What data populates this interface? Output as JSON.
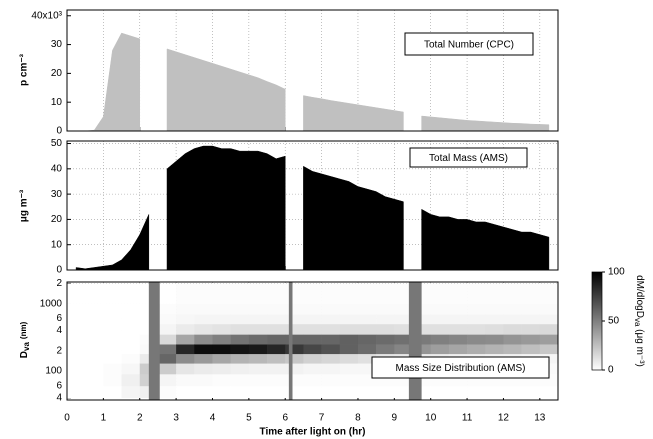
{
  "chart_data": [
    {
      "type": "area",
      "ylabel": "p cm⁻³",
      "annotation": "Total Number (CPC)",
      "ylim": [
        0,
        42
      ],
      "yticks": [
        0,
        10,
        20,
        30,
        {
          "value": 40,
          "label": "40x10³"
        }
      ],
      "grid": true,
      "x": [
        0,
        0.25,
        0.5,
        0.75,
        1,
        1.25,
        1.5,
        1.75,
        2,
        2.25,
        2.5,
        2.75,
        3,
        3.25,
        3.5,
        3.75,
        4,
        4.25,
        4.5,
        4.75,
        5,
        5.25,
        5.5,
        5.75,
        6,
        6.25,
        6.5,
        6.75,
        7,
        7.25,
        7.5,
        7.75,
        8,
        8.25,
        8.5,
        8.75,
        9,
        9.25,
        9.5,
        9.75,
        10,
        10.25,
        10.5,
        10.75,
        11,
        11.25,
        11.5,
        11.75,
        12,
        12.25,
        12.5,
        12.75,
        13,
        13.25
      ],
      "series": [
        {
          "color": "#c0c0c0",
          "values": [
            0,
            0,
            0,
            0.3,
            5,
            28,
            34,
            33,
            32,
            null,
            null,
            28.5,
            27.5,
            26.5,
            25.5,
            24.5,
            23.5,
            22.5,
            21.5,
            20.5,
            19.5,
            18.5,
            17.2,
            16,
            14.5,
            null,
            12.3,
            11.7,
            11.2,
            10.6,
            10.1,
            9.6,
            9.1,
            8.6,
            8.1,
            7.6,
            7.1,
            6.6,
            null,
            5.2,
            4.9,
            4.6,
            4.3,
            4.0,
            3.7,
            3.5,
            3.3,
            3.1,
            2.9,
            2.7,
            2.6,
            2.4,
            2.3,
            2.2
          ]
        }
      ]
    },
    {
      "type": "area",
      "ylabel": "μg m⁻³",
      "annotation": "Total Mass (AMS)",
      "ylim": [
        0,
        51
      ],
      "yticks": [
        0,
        10,
        20,
        30,
        40,
        50
      ],
      "grid": true,
      "x": [
        0.25,
        0.5,
        0.75,
        1,
        1.25,
        1.5,
        1.75,
        2,
        2.25,
        2.5,
        2.75,
        3,
        3.25,
        3.5,
        3.75,
        4,
        4.25,
        4.5,
        4.75,
        5,
        5.25,
        5.5,
        5.75,
        6,
        6.25,
        6.5,
        6.75,
        7,
        7.25,
        7.5,
        7.75,
        8,
        8.25,
        8.5,
        8.75,
        9,
        9.25,
        9.5,
        9.75,
        10,
        10.25,
        10.5,
        10.75,
        11,
        11.25,
        11.5,
        11.75,
        12,
        12.25,
        12.5,
        12.75,
        13,
        13.25
      ],
      "series": [
        {
          "color": "#000000",
          "values": [
            1,
            0.5,
            1,
            1.5,
            2,
            4,
            8,
            14,
            22,
            null,
            40,
            43,
            46,
            48,
            49,
            49,
            48,
            48,
            47,
            47,
            47,
            46,
            44,
            45,
            null,
            41,
            39,
            38,
            37,
            36,
            35,
            33,
            32,
            31,
            29,
            28,
            27,
            null,
            24,
            22,
            21,
            21,
            20,
            20,
            19,
            19,
            18,
            17,
            16,
            15,
            15,
            14,
            13
          ]
        }
      ]
    },
    {
      "type": "heatmap",
      "ylabel": {
        "symbol": "D",
        "subscript": "va",
        "unit": "(nm)"
      },
      "annotation": "Mass Size Distribution (AMS)",
      "xlabel": "Time after light on (hr)",
      "xlim": [
        0,
        13.5
      ],
      "xticks": [
        0,
        1,
        2,
        3,
        4,
        5,
        6,
        7,
        8,
        9,
        10,
        11,
        12,
        13
      ],
      "log_y": true,
      "ylim": [
        37,
        2100
      ],
      "yticks": [
        {
          "value": 40,
          "label": "4"
        },
        {
          "value": 60,
          "label": "6"
        },
        100,
        {
          "value": 200,
          "label": "2"
        },
        {
          "value": 400,
          "label": "4"
        },
        {
          "value": 600,
          "label": "6"
        },
        1000,
        {
          "value": 2000,
          "label": "2"
        }
      ],
      "x_bins": [
        0,
        0.5,
        1,
        1.5,
        2,
        2.5,
        3,
        3.5,
        4,
        4.5,
        5,
        5.5,
        6,
        6.5,
        7,
        7.5,
        8,
        8.5,
        9,
        9.5,
        10,
        10.5,
        11,
        11.5,
        12,
        12.5,
        13,
        13.5
      ],
      "y_bins": [
        40,
        60,
        90,
        130,
        180,
        250,
        350,
        500,
        700,
        1000,
        2000
      ],
      "z": [
        [
          0,
          0,
          0,
          0,
          0,
          0,
          0,
          0,
          0,
          0
        ],
        [
          0,
          0,
          0,
          0,
          0,
          0,
          0,
          0,
          0,
          0
        ],
        [
          0,
          1,
          1,
          0,
          0,
          0,
          0,
          0,
          0,
          0
        ],
        [
          4,
          6,
          3,
          1,
          0,
          0,
          0,
          0,
          0,
          0
        ],
        [
          6,
          18,
          20,
          8,
          2,
          1,
          0,
          0,
          0,
          0
        ],
        [
          1,
          4,
          20,
          60,
          55,
          15,
          4,
          2,
          1,
          0
        ],
        [
          0,
          2,
          10,
          45,
          85,
          35,
          8,
          3,
          2,
          1
        ],
        [
          0,
          2,
          8,
          40,
          95,
          45,
          10,
          4,
          2,
          1
        ],
        [
          0,
          1,
          7,
          35,
          95,
          50,
          11,
          4,
          2,
          1
        ],
        [
          0,
          1,
          6,
          30,
          92,
          55,
          12,
          4,
          2,
          1
        ],
        [
          0,
          1,
          5,
          28,
          90,
          58,
          12,
          4,
          2,
          1
        ],
        [
          0,
          1,
          5,
          25,
          85,
          60,
          12,
          4,
          2,
          1
        ],
        [
          0,
          1,
          5,
          22,
          78,
          60,
          12,
          4,
          2,
          1
        ],
        [
          0,
          1,
          4,
          18,
          72,
          60,
          12,
          4,
          2,
          1
        ],
        [
          0,
          1,
          4,
          16,
          68,
          60,
          12,
          4,
          2,
          1
        ],
        [
          0,
          1,
          3,
          14,
          62,
          62,
          13,
          4,
          2,
          1
        ],
        [
          0,
          1,
          3,
          12,
          58,
          60,
          13,
          4,
          2,
          1
        ],
        [
          0,
          1,
          3,
          10,
          52,
          58,
          13,
          4,
          2,
          1
        ],
        [
          0,
          1,
          3,
          9,
          48,
          56,
          12,
          4,
          2,
          1
        ],
        [
          0,
          1,
          2,
          8,
          42,
          52,
          12,
          4,
          2,
          1
        ],
        [
          0,
          1,
          2,
          7,
          38,
          50,
          12,
          4,
          2,
          1
        ],
        [
          0,
          1,
          2,
          6,
          35,
          48,
          12,
          4,
          2,
          1
        ],
        [
          0,
          1,
          2,
          6,
          32,
          46,
          12,
          4,
          2,
          1
        ],
        [
          0,
          1,
          2,
          5,
          30,
          45,
          13,
          4,
          2,
          1
        ],
        [
          0,
          1,
          2,
          5,
          28,
          42,
          14,
          4,
          2,
          1
        ],
        [
          0,
          1,
          2,
          4,
          25,
          40,
          14,
          4,
          2,
          1
        ],
        [
          0,
          1,
          2,
          4,
          22,
          38,
          15,
          4,
          2,
          1
        ]
      ],
      "shaded": [
        [
          2.25,
          2.55
        ],
        [
          6.1,
          6.2
        ],
        [
          9.4,
          9.75
        ]
      ],
      "shade_color": "#777777",
      "grid": true,
      "colorbar": {
        "label": {
          "text": "dM/dlogD",
          "subscript": "va",
          "unit": " (μg m⁻³)"
        },
        "lim": [
          0,
          100
        ],
        "ticks": [
          0,
          50,
          100
        ]
      }
    }
  ]
}
